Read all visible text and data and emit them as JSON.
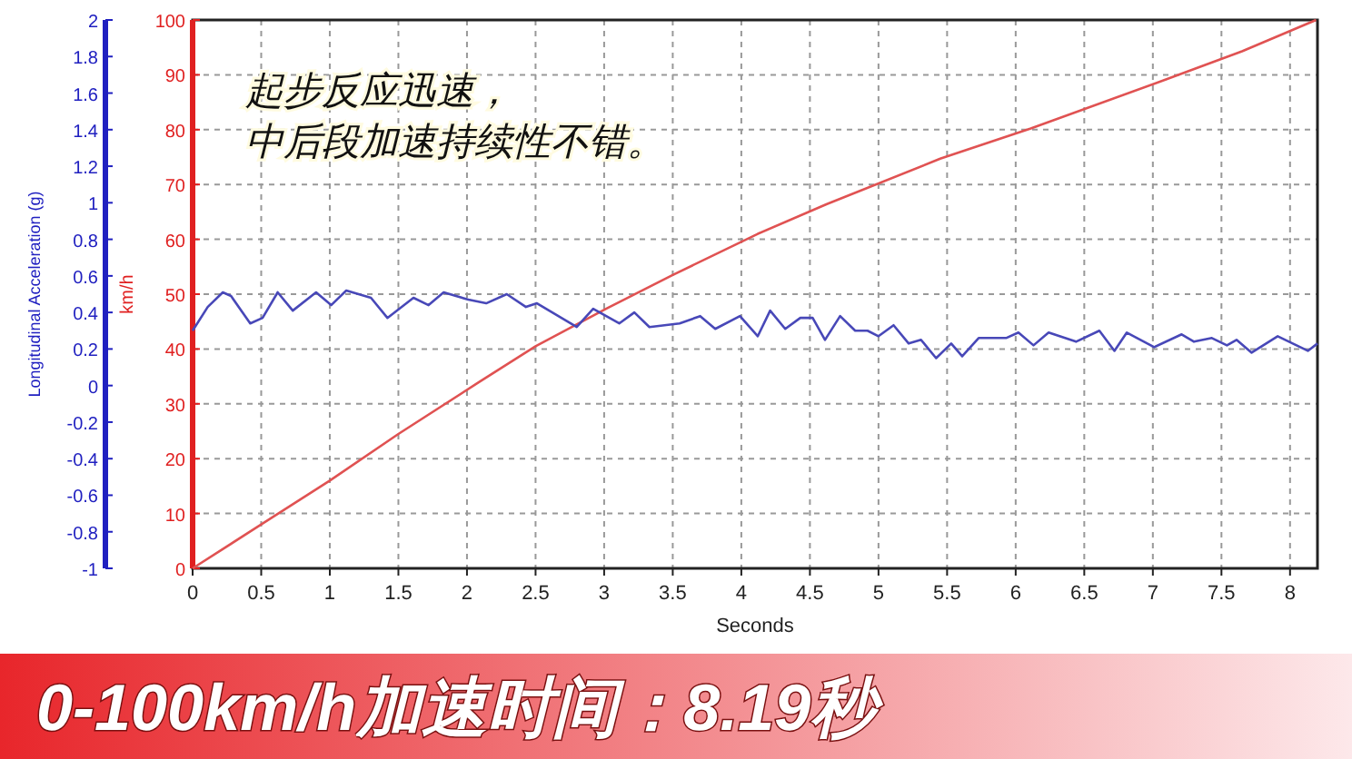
{
  "chart_data": {
    "type": "line",
    "xlabel": "Seconds",
    "ylabel": "Longitudinal Acceleration (g)",
    "y2label": "km/h",
    "annotations": [
      "起步反应迅速，",
      "中后段加速持续性不错。",
      "0-100km/h加速时间：8.19秒"
    ],
    "xlim": [
      0,
      8.2
    ],
    "xticks": [
      0,
      0.5,
      1,
      1.5,
      2,
      2.5,
      3,
      3.5,
      4,
      4.5,
      5,
      5.5,
      6,
      6.5,
      7,
      7.5,
      8
    ],
    "ylim": [
      -1,
      2
    ],
    "yticks": [
      -1,
      -0.8,
      -0.6,
      -0.4,
      -0.2,
      0,
      0.2,
      0.4,
      0.6,
      0.8,
      1,
      1.2,
      1.4,
      1.6,
      1.8,
      2
    ],
    "y2lim": [
      0,
      100
    ],
    "y2ticks": [
      0,
      10,
      20,
      30,
      40,
      50,
      60,
      70,
      80,
      90,
      100
    ],
    "grid": true,
    "marker": "none",
    "line_style": "solid",
    "series": [
      {
        "color": "#e05252",
        "axis": "y2",
        "x": [
          0,
          0.5,
          1,
          1.5,
          2.09,
          2.5,
          3.02,
          3.5,
          4.12,
          4.62,
          5.45,
          6.11,
          7.1,
          7.65,
          8.19
        ],
        "values": [
          0,
          8,
          16,
          24.5,
          34,
          40.5,
          47.4,
          53.5,
          61,
          66.4,
          74.7,
          80.2,
          89.2,
          94.3,
          100
        ]
      },
      {
        "color": "#4848b8",
        "axis": "y",
        "x": [
          0,
          0.11,
          0.22,
          0.28,
          0.42,
          0.51,
          0.62,
          0.73,
          0.9,
          1.01,
          1.12,
          1.3,
          1.42,
          1.61,
          1.72,
          1.83,
          2.01,
          2.14,
          2.29,
          2.43,
          2.51,
          2.8,
          2.92,
          3.11,
          3.22,
          3.33,
          3.55,
          3.7,
          3.81,
          3.99,
          4.12,
          4.21,
          4.32,
          4.43,
          4.52,
          4.61,
          4.72,
          4.83,
          4.92,
          5.0,
          5.11,
          5.22,
          5.31,
          5.42,
          5.53,
          5.61,
          5.73,
          5.93,
          6.02,
          6.13,
          6.24,
          6.44,
          6.61,
          6.72,
          6.81,
          7.01,
          7.21,
          7.3,
          7.43,
          7.54,
          7.61,
          7.72,
          7.91,
          8.13,
          8.2
        ],
        "values": [
          0.3,
          0.43,
          0.51,
          0.49,
          0.34,
          0.37,
          0.51,
          0.41,
          0.51,
          0.44,
          0.52,
          0.48,
          0.37,
          0.48,
          0.44,
          0.51,
          0.47,
          0.45,
          0.5,
          0.43,
          0.45,
          0.32,
          0.42,
          0.34,
          0.4,
          0.32,
          0.34,
          0.38,
          0.31,
          0.38,
          0.27,
          0.41,
          0.31,
          0.37,
          0.37,
          0.25,
          0.38,
          0.3,
          0.3,
          0.27,
          0.33,
          0.23,
          0.25,
          0.15,
          0.23,
          0.16,
          0.26,
          0.26,
          0.29,
          0.22,
          0.29,
          0.24,
          0.3,
          0.19,
          0.29,
          0.21,
          0.28,
          0.24,
          0.26,
          0.22,
          0.25,
          0.18,
          0.27,
          0.19,
          0.23
        ]
      }
    ]
  }
}
